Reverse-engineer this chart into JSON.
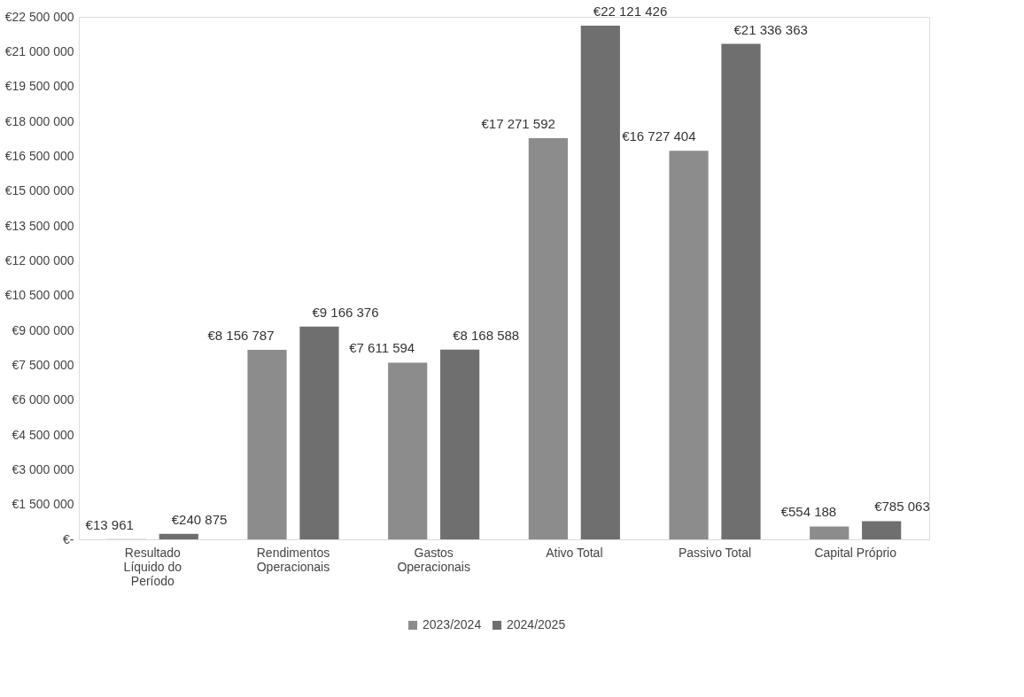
{
  "chart_data": {
    "type": "bar",
    "categories": [
      "Resultado Líquido do Período",
      "Rendimentos Operacionais",
      "Gastos Operacionais",
      "Ativo Total",
      "Passivo Total",
      "Capital Próprio"
    ],
    "series": [
      {
        "name": "2023/2024",
        "color": "#8c8c8c",
        "values": [
          13961,
          8156787,
          7611594,
          17271592,
          16727404,
          554188
        ],
        "value_labels": [
          "€13 961",
          "€8 156 787",
          "€7 611 594",
          "€17 271 592",
          "€16 727 404",
          "€554 188"
        ]
      },
      {
        "name": "2024/2025",
        "color": "#6f6f6f",
        "values": [
          240875,
          9166376,
          8168588,
          22121426,
          21336363,
          785063
        ],
        "value_labels": [
          "€240 875",
          "€9 166 376",
          "€8 168 588",
          "€22 121 426",
          "€21 336 363",
          "€785 063"
        ]
      }
    ],
    "ylim": [
      0,
      22500000
    ],
    "yticks": [
      {
        "value": 0,
        "label": "€-"
      },
      {
        "value": 1500000,
        "label": "€1 500 000"
      },
      {
        "value": 3000000,
        "label": "€3 000 000"
      },
      {
        "value": 4500000,
        "label": "€4 500 000"
      },
      {
        "value": 6000000,
        "label": "€6 000 000"
      },
      {
        "value": 7500000,
        "label": "€7 500 000"
      },
      {
        "value": 9000000,
        "label": "€9 000 000"
      },
      {
        "value": 10500000,
        "label": "€10 500 000"
      },
      {
        "value": 12000000,
        "label": "€12 000 000"
      },
      {
        "value": 13500000,
        "label": "€13 500 000"
      },
      {
        "value": 15000000,
        "label": "€15 000 000"
      },
      {
        "value": 16500000,
        "label": "€16 500 000"
      },
      {
        "value": 18000000,
        "label": "€18 000 000"
      },
      {
        "value": 19500000,
        "label": "€19 500 000"
      },
      {
        "value": 21000000,
        "label": "€21 000 000"
      },
      {
        "value": 22500000,
        "label": "€22 500 000"
      }
    ],
    "grid": false,
    "legend": "bottom"
  }
}
